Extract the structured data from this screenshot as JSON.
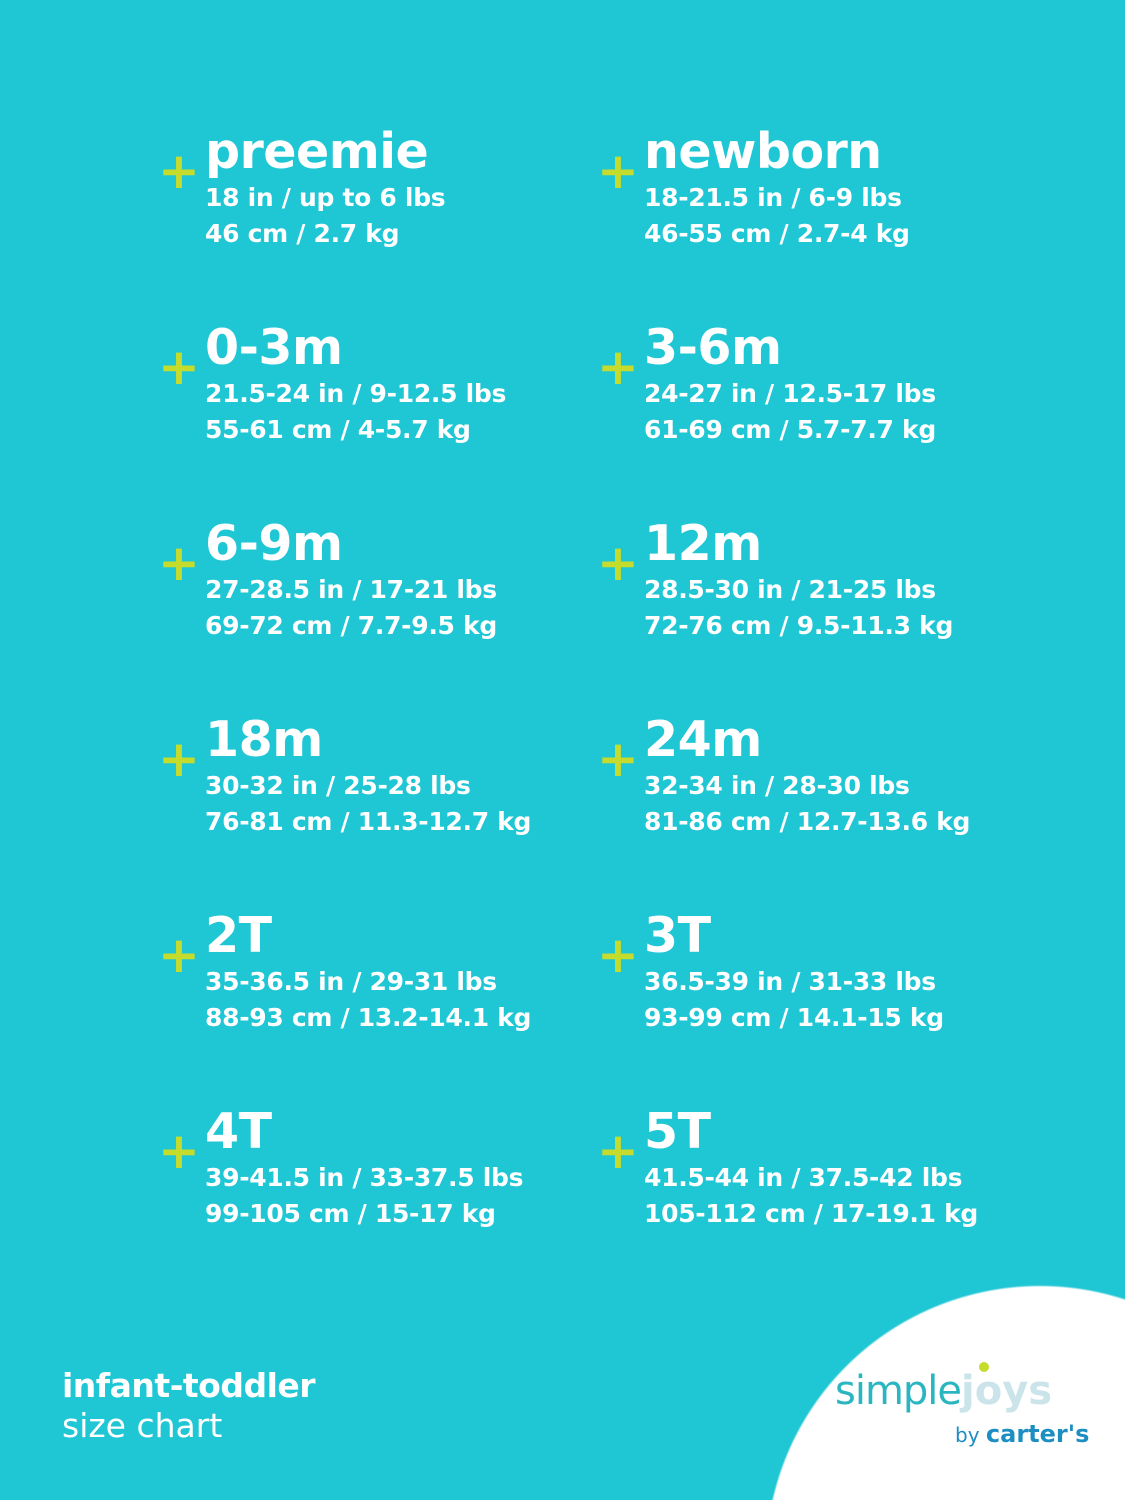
{
  "colors": {
    "background": "#1fc6d4",
    "accent": "#c6dc2c",
    "text": "#ffffff"
  },
  "plus_icon": "+",
  "sizes": [
    {
      "name": "preemie",
      "imperial": "18 in / up to 6 lbs",
      "metric": "46 cm / 2.7 kg"
    },
    {
      "name": "newborn",
      "imperial": "18-21.5 in / 6-9 lbs",
      "metric": "46-55 cm / 2.7-4 kg"
    },
    {
      "name": "0-3m",
      "imperial": "21.5-24 in / 9-12.5 lbs",
      "metric": "55-61 cm / 4-5.7 kg"
    },
    {
      "name": "3-6m",
      "imperial": "24-27 in / 12.5-17 lbs",
      "metric": "61-69 cm / 5.7-7.7 kg"
    },
    {
      "name": "6-9m",
      "imperial": "27-28.5 in / 17-21 lbs",
      "metric": "69-72 cm / 7.7-9.5 kg"
    },
    {
      "name": "12m",
      "imperial": "28.5-30 in / 21-25 lbs",
      "metric": "72-76 cm / 9.5-11.3 kg"
    },
    {
      "name": "18m",
      "imperial": "30-32 in / 25-28 lbs",
      "metric": "76-81 cm / 11.3-12.7 kg"
    },
    {
      "name": "24m",
      "imperial": "32-34 in / 28-30 lbs",
      "metric": "81-86 cm / 12.7-13.6 kg"
    },
    {
      "name": "2T",
      "imperial": "35-36.5 in / 29-31 lbs",
      "metric": "88-93 cm / 13.2-14.1 kg"
    },
    {
      "name": "3T",
      "imperial": "36.5-39 in / 31-33 lbs",
      "metric": "93-99 cm / 14.1-15 kg"
    },
    {
      "name": "4T",
      "imperial": "39-41.5 in / 33-37.5 lbs",
      "metric": "99-105 cm / 15-17 kg"
    },
    {
      "name": "5T",
      "imperial": "41.5-44 in / 37.5-42 lbs",
      "metric": "105-112 cm / 17-19.1 kg"
    }
  ],
  "footer": {
    "line1": "infant-toddler",
    "line2": "size chart"
  },
  "logo": {
    "simple": "simple",
    "joys": "joys",
    "by": "by",
    "brand": "carter's"
  }
}
